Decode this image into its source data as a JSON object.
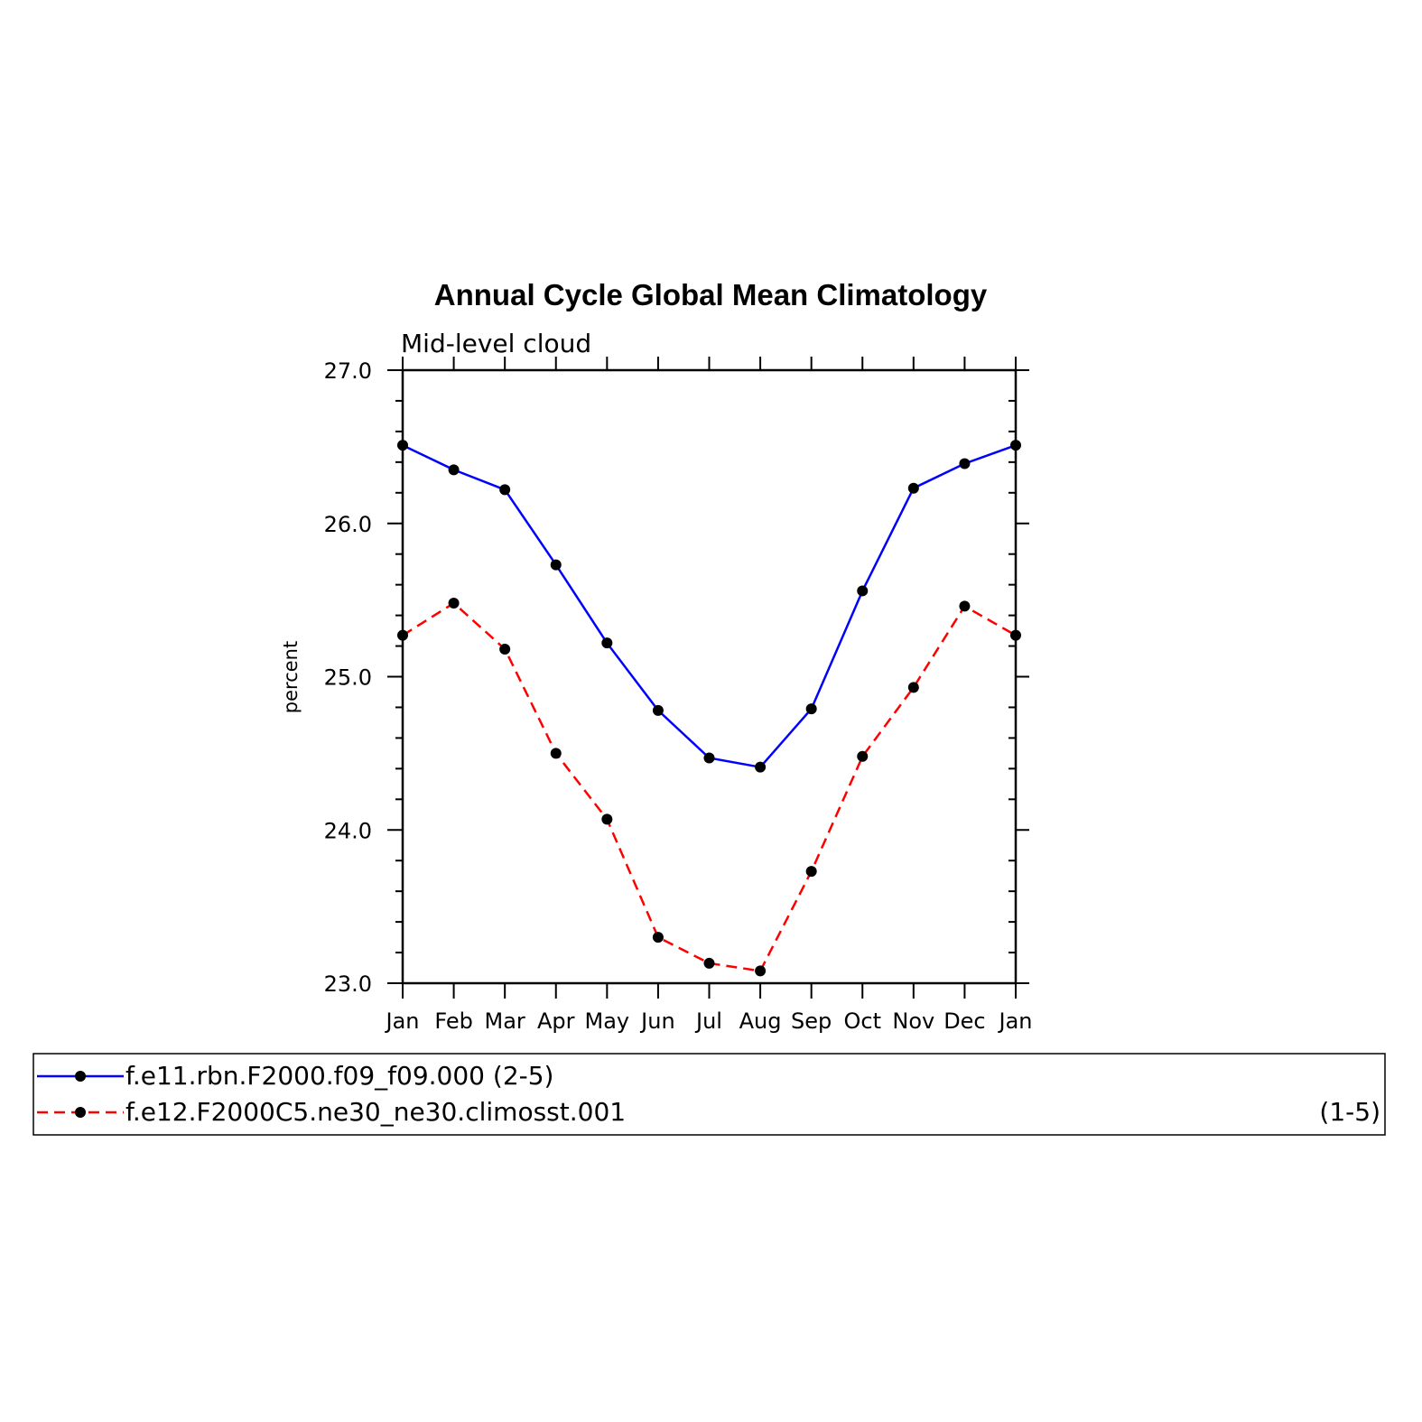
{
  "chart_data": {
    "type": "line",
    "title": "Annual Cycle Global Mean Climatology",
    "subtitle": "Mid-level cloud",
    "xlabel": "",
    "ylabel": "percent",
    "categories": [
      "Jan",
      "Feb",
      "Mar",
      "Apr",
      "May",
      "Jun",
      "Jul",
      "Aug",
      "Sep",
      "Oct",
      "Nov",
      "Dec",
      "Jan"
    ],
    "ylim": [
      23.0,
      27.0
    ],
    "yticks": [
      "23.0",
      "24.0",
      "25.0",
      "26.0",
      "27.0"
    ],
    "grid": false,
    "legend_position": "bottom",
    "series": [
      {
        "name": "f.e11.rbn.F2000.f09_f09.000 (2-5)",
        "color": "#0000ff",
        "line_style": "solid",
        "marker": "filled-circle",
        "values": [
          26.51,
          26.35,
          26.22,
          25.73,
          25.22,
          24.78,
          24.47,
          24.41,
          24.79,
          25.56,
          26.23,
          26.39,
          26.51
        ]
      },
      {
        "name": "f.e12.F2000C5.ne30_ne30.climosst.001",
        "name_suffix": "(1-5)",
        "color": "#ff0000",
        "line_style": "dashed",
        "marker": "filled-circle",
        "values": [
          25.27,
          25.48,
          25.18,
          24.5,
          24.07,
          23.3,
          23.13,
          23.08,
          23.73,
          24.48,
          24.93,
          25.46,
          25.27
        ]
      }
    ]
  }
}
